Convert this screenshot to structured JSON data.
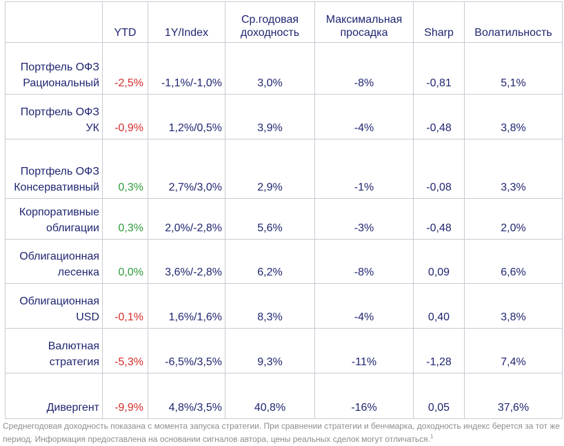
{
  "colors": {
    "text": "#1f2570",
    "negative": "#d52b2b",
    "positive": "#2e9a3a",
    "footnote": "#8c8c8c",
    "border": "#c9c9d4"
  },
  "table": {
    "headers": {
      "name": "",
      "ytd": "YTD",
      "index": "1Y/Index",
      "annual": "Ср.годовая доходность",
      "drawdown": "Максимальная просадка",
      "sharp": "Sharp",
      "volatility": "Волатильность"
    },
    "rows": [
      {
        "name": "Портфель ОФЗ Рациональный",
        "ytd": "-2,5%",
        "ytd_sign": "neg",
        "index": "-1,1%/-1,0%",
        "annual": "3,0%",
        "drawdown": "-8%",
        "sharp": "-0,81",
        "volatility": "5,1%"
      },
      {
        "name": "Портфель ОФЗ УК",
        "ytd": "-0,9%",
        "ytd_sign": "neg",
        "index": "1,2%/0,5%",
        "annual": "3,9%",
        "drawdown": "-4%",
        "sharp": "-0,48",
        "volatility": "3,8%"
      },
      {
        "name": "Портфель ОФЗ Консервативный",
        "ytd": "0,3%",
        "ytd_sign": "pos",
        "index": "2,7%/3,0%",
        "annual": "2,9%",
        "drawdown": "-1%",
        "sharp": "-0,08",
        "volatility": "3,3%"
      },
      {
        "name": "Корпоративные облигации",
        "ytd": "0,3%",
        "ytd_sign": "pos",
        "index": "2,0%/-2,8%",
        "annual": "5,6%",
        "drawdown": "-3%",
        "sharp": "-0,48",
        "volatility": "2,0%"
      },
      {
        "name": "Облигационная лесенка",
        "ytd": "0,0%",
        "ytd_sign": "pos",
        "index": "3,6%/-2,8%",
        "annual": "6,2%",
        "drawdown": "-8%",
        "sharp": "0,09",
        "volatility": "6,6%"
      },
      {
        "name": "Облигационная USD",
        "ytd": "-0,1%",
        "ytd_sign": "neg",
        "index": "1,6%/1,6%",
        "annual": "8,3%",
        "drawdown": "-4%",
        "sharp": "0,40",
        "volatility": "3,8%"
      },
      {
        "name": "Валютная стратегия",
        "ytd": "-5,3%",
        "ytd_sign": "neg",
        "index": "-6,5%/3,5%",
        "annual": "9,3%",
        "drawdown": "-11%",
        "sharp": "-1,28",
        "volatility": "7,4%"
      },
      {
        "name": "Дивергент",
        "ytd": "-9,9%",
        "ytd_sign": "neg",
        "index": "4,8%/3,5%",
        "annual": "40,8%",
        "drawdown": "-16%",
        "sharp": "0,05",
        "volatility": "37,6%"
      }
    ]
  },
  "footnote": {
    "text": "Среднегодовая доходность показана с момента запуска стратегии. При сравнении стратегии и бенчмарка, доходность индекс берется за тот же период. Информация предоставлена на основании сигналов автора, цены реальных сделок могут отличаться.",
    "sup": "1"
  }
}
